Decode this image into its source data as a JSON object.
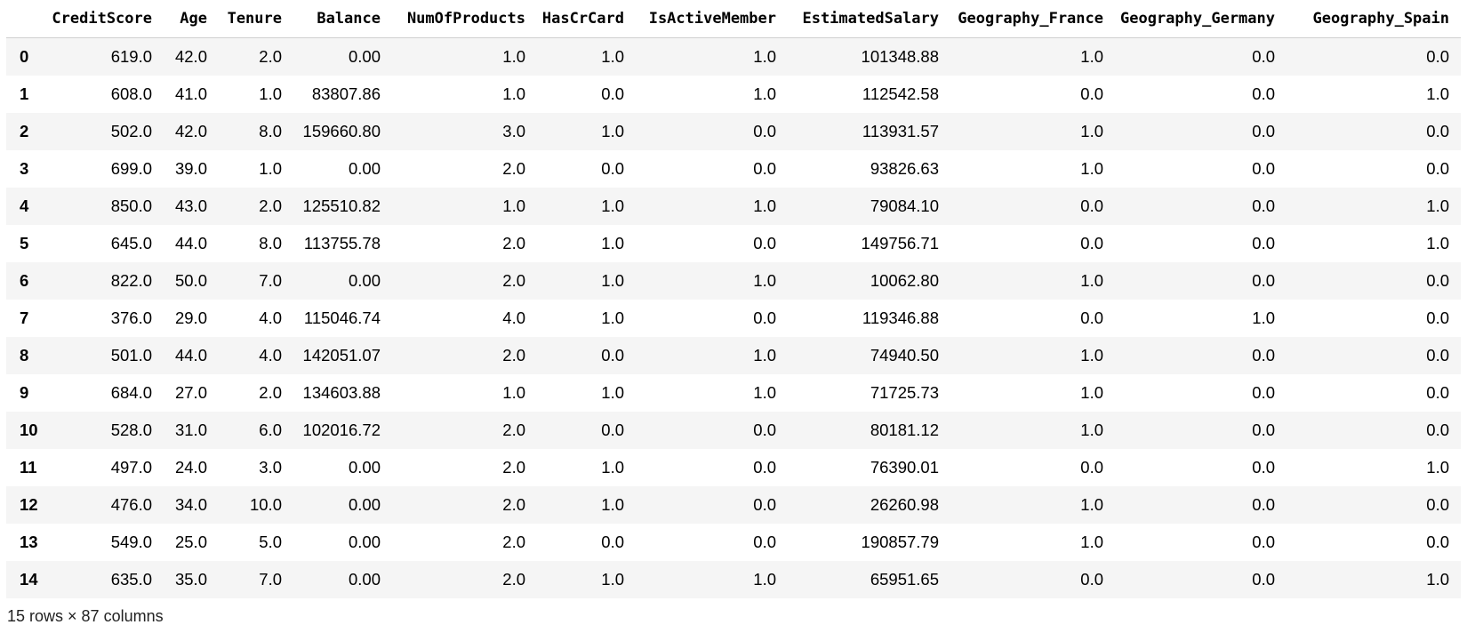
{
  "table": {
    "columns": [
      "",
      "CreditScore",
      "Age",
      "Tenure",
      "Balance",
      "NumOfProducts",
      "HasCrCard",
      "IsActiveMember",
      "EstimatedSalary",
      "Geography_France",
      "Geography_Germany",
      "Geography_Spain"
    ],
    "rows": [
      [
        "0",
        "619.0",
        "42.0",
        "2.0",
        "0.00",
        "1.0",
        "1.0",
        "1.0",
        "101348.88",
        "1.0",
        "0.0",
        "0.0"
      ],
      [
        "1",
        "608.0",
        "41.0",
        "1.0",
        "83807.86",
        "1.0",
        "0.0",
        "1.0",
        "112542.58",
        "0.0",
        "0.0",
        "1.0"
      ],
      [
        "2",
        "502.0",
        "42.0",
        "8.0",
        "159660.80",
        "3.0",
        "1.0",
        "0.0",
        "113931.57",
        "1.0",
        "0.0",
        "0.0"
      ],
      [
        "3",
        "699.0",
        "39.0",
        "1.0",
        "0.00",
        "2.0",
        "0.0",
        "0.0",
        "93826.63",
        "1.0",
        "0.0",
        "0.0"
      ],
      [
        "4",
        "850.0",
        "43.0",
        "2.0",
        "125510.82",
        "1.0",
        "1.0",
        "1.0",
        "79084.10",
        "0.0",
        "0.0",
        "1.0"
      ],
      [
        "5",
        "645.0",
        "44.0",
        "8.0",
        "113755.78",
        "2.0",
        "1.0",
        "0.0",
        "149756.71",
        "0.0",
        "0.0",
        "1.0"
      ],
      [
        "6",
        "822.0",
        "50.0",
        "7.0",
        "0.00",
        "2.0",
        "1.0",
        "1.0",
        "10062.80",
        "1.0",
        "0.0",
        "0.0"
      ],
      [
        "7",
        "376.0",
        "29.0",
        "4.0",
        "115046.74",
        "4.0",
        "1.0",
        "0.0",
        "119346.88",
        "0.0",
        "1.0",
        "0.0"
      ],
      [
        "8",
        "501.0",
        "44.0",
        "4.0",
        "142051.07",
        "2.0",
        "0.0",
        "1.0",
        "74940.50",
        "1.0",
        "0.0",
        "0.0"
      ],
      [
        "9",
        "684.0",
        "27.0",
        "2.0",
        "134603.88",
        "1.0",
        "1.0",
        "1.0",
        "71725.73",
        "1.0",
        "0.0",
        "0.0"
      ],
      [
        "10",
        "528.0",
        "31.0",
        "6.0",
        "102016.72",
        "2.0",
        "0.0",
        "0.0",
        "80181.12",
        "1.0",
        "0.0",
        "0.0"
      ],
      [
        "11",
        "497.0",
        "24.0",
        "3.0",
        "0.00",
        "2.0",
        "1.0",
        "0.0",
        "76390.01",
        "0.0",
        "0.0",
        "1.0"
      ],
      [
        "12",
        "476.0",
        "34.0",
        "10.0",
        "0.00",
        "2.0",
        "1.0",
        "0.0",
        "26260.98",
        "1.0",
        "0.0",
        "0.0"
      ],
      [
        "13",
        "549.0",
        "25.0",
        "5.0",
        "0.00",
        "2.0",
        "0.0",
        "0.0",
        "190857.79",
        "1.0",
        "0.0",
        "0.0"
      ],
      [
        "14",
        "635.0",
        "35.0",
        "7.0",
        "0.00",
        "2.0",
        "1.0",
        "1.0",
        "65951.65",
        "0.0",
        "0.0",
        "1.0"
      ]
    ]
  },
  "footer": {
    "shape_text": "15 rows × 87 columns"
  }
}
